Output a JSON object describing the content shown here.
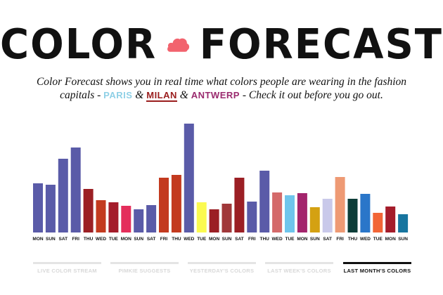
{
  "header": {
    "title_left": "COLOR",
    "title_right": "FORECAST",
    "logo_icon": "cloud-icon",
    "logo_color": "#f2636e"
  },
  "description": {
    "text_before": "Color Forecast shows you in real time what colors people are wearing in the fashion capitals - ",
    "paris": "PARIS",
    "amp1": " & ",
    "milan": "MILAN",
    "amp2": " & ",
    "antwerp": "ANTWERP",
    "text_after": " - Check it out before you go out."
  },
  "chart_data": {
    "type": "bar",
    "title": "",
    "categories": [
      "MON",
      "SUN",
      "SAT",
      "FRI",
      "THU",
      "WED",
      "TUE",
      "MON",
      "SUN",
      "SAT",
      "FRI",
      "THU",
      "WED",
      "TUE",
      "MON",
      "SUN",
      "SAT",
      "FRI",
      "THU",
      "WED",
      "TUE",
      "MON",
      "SUN",
      "SAT",
      "FRI",
      "THU",
      "WED",
      "TUE",
      "MON",
      "SUN"
    ],
    "values": [
      70,
      68,
      105,
      121,
      62,
      46,
      43,
      38,
      33,
      39,
      78,
      82,
      155,
      43,
      33,
      41,
      78,
      44,
      88,
      57,
      53,
      56,
      36,
      48,
      79,
      48,
      55,
      28,
      37,
      26
    ],
    "colors": [
      "#5a5ba8",
      "#5a5ba8",
      "#5a5ba8",
      "#5a5ba8",
      "#9b1f24",
      "#c33a1f",
      "#a41c2a",
      "#e42e5b",
      "#5a5ba8",
      "#5a5ba8",
      "#c33a1f",
      "#c33a1f",
      "#5a5ba8",
      "#fbfa50",
      "#9b1f24",
      "#a0383a",
      "#9b1f24",
      "#5a5ba8",
      "#5a5ba8",
      "#d46a6a",
      "#6fc5ec",
      "#a3246c",
      "#d4a112",
      "#c9c9ea",
      "#ee9a74",
      "#0d3d38",
      "#2a76c9",
      "#f26536",
      "#a41c2a",
      "#17759f"
    ],
    "ylim": [
      0,
      160
    ],
    "grid": false,
    "xlabel": "",
    "ylabel": ""
  },
  "tabs": [
    {
      "label": "LIVE COLOR STREAM",
      "active": false
    },
    {
      "label": "PIMKIE SUGGESTS",
      "active": false
    },
    {
      "label": "YESTERDAY'S COLORS",
      "active": false
    },
    {
      "label": "LAST WEEK'S COLORS",
      "active": false
    },
    {
      "label": "LAST MONTH'S COLORS",
      "active": true
    }
  ]
}
